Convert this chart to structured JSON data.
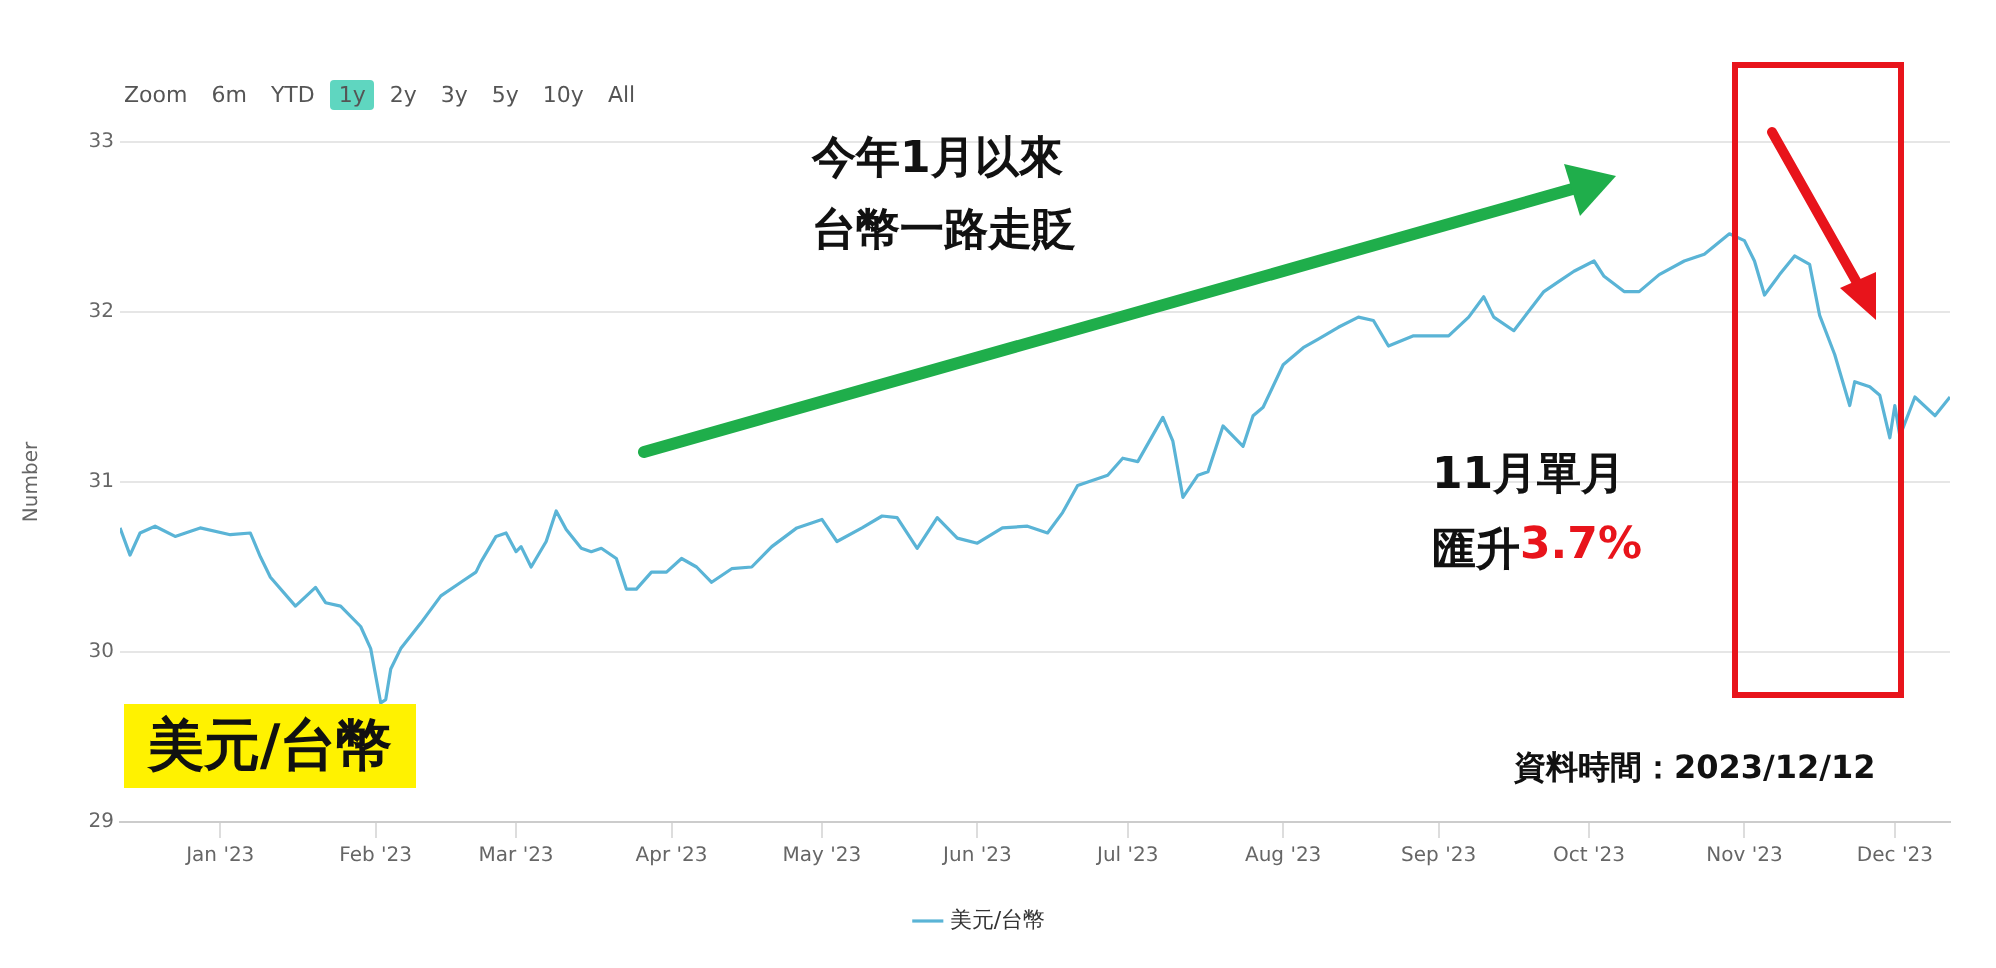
{
  "chart_data": {
    "type": "line",
    "title": "美元/台幣",
    "ylabel": "Number",
    "annotations": [
      "Zoom",
      "6m",
      "YTD",
      "1y",
      "2y",
      "3y",
      "5y",
      "10y",
      "All",
      "今年1月以來",
      "台幣一路走貶",
      "11月單月",
      "匯升",
      "3.7%",
      "資料時間：2023/12/12"
    ],
    "x": [
      "2022-12-12",
      "2022-12-14",
      "2022-12-16",
      "2022-12-19",
      "2022-12-23",
      "2022-12-28",
      "2023-01-03",
      "2023-01-07",
      "2023-01-09",
      "2023-01-11",
      "2023-01-16",
      "2023-01-20",
      "2023-01-22",
      "2023-01-25",
      "2023-01-29",
      "2023-01-31",
      "2023-02-02",
      "2023-02-03",
      "2023-02-04",
      "2023-02-06",
      "2023-02-10",
      "2023-02-14",
      "2023-02-18",
      "2023-02-21",
      "2023-02-22",
      "2023-02-25",
      "2023-02-27",
      "2023-03-01",
      "2023-03-02",
      "2023-03-04",
      "2023-03-07",
      "2023-03-09",
      "2023-03-11",
      "2023-03-14",
      "2023-03-16",
      "2023-03-18",
      "2023-03-21",
      "2023-03-23",
      "2023-03-25",
      "2023-03-28",
      "2023-03-31",
      "2023-04-03",
      "2023-04-06",
      "2023-04-09",
      "2023-04-13",
      "2023-04-17",
      "2023-04-21",
      "2023-04-26",
      "2023-05-01",
      "2023-05-04",
      "2023-05-09",
      "2023-05-13",
      "2023-05-16",
      "2023-05-20",
      "2023-05-24",
      "2023-05-28",
      "2023-06-01",
      "2023-06-06",
      "2023-06-11",
      "2023-06-15",
      "2023-06-18",
      "2023-06-21",
      "2023-06-27",
      "2023-06-30",
      "2023-07-03",
      "2023-07-08",
      "2023-07-10",
      "2023-07-12",
      "2023-07-15",
      "2023-07-17",
      "2023-07-20",
      "2023-07-24",
      "2023-07-26",
      "2023-07-28",
      "2023-08-01",
      "2023-08-05",
      "2023-08-08",
      "2023-08-12",
      "2023-08-16",
      "2023-08-19",
      "2023-08-22",
      "2023-08-27",
      "2023-09-03",
      "2023-09-07",
      "2023-09-10",
      "2023-09-12",
      "2023-09-16",
      "2023-09-22",
      "2023-09-25",
      "2023-09-28",
      "2023-10-02",
      "2023-10-04",
      "2023-10-08",
      "2023-10-11",
      "2023-10-15",
      "2023-10-20",
      "2023-10-24",
      "2023-10-29",
      "2023-11-01",
      "2023-11-03",
      "2023-11-05",
      "2023-11-08",
      "2023-11-11",
      "2023-11-14",
      "2023-11-16",
      "2023-11-19",
      "2023-11-22",
      "2023-11-23",
      "2023-11-26",
      "2023-11-28",
      "2023-11-30",
      "2023-12-01",
      "2023-12-02",
      "2023-12-05",
      "2023-12-09",
      "2023-12-12"
    ],
    "series": [
      {
        "name": "美元/台幣",
        "color": "#5ab4d6",
        "values": [
          30.73,
          30.57,
          30.7,
          30.74,
          30.68,
          30.73,
          30.69,
          30.7,
          30.56,
          30.44,
          30.27,
          30.38,
          30.29,
          30.27,
          30.15,
          30.02,
          29.7,
          29.72,
          29.9,
          30.02,
          30.17,
          30.33,
          30.41,
          30.47,
          30.53,
          30.68,
          30.7,
          30.59,
          30.62,
          30.5,
          30.65,
          30.83,
          30.72,
          30.61,
          30.59,
          30.61,
          30.55,
          30.37,
          30.37,
          30.47,
          30.47,
          30.55,
          30.5,
          30.41,
          30.49,
          30.5,
          30.62,
          30.73,
          30.78,
          30.65,
          30.73,
          30.8,
          30.79,
          30.61,
          30.79,
          30.67,
          30.64,
          30.73,
          30.74,
          30.7,
          30.82,
          30.98,
          31.04,
          31.14,
          31.12,
          31.38,
          31.24,
          30.91,
          31.04,
          31.06,
          31.33,
          31.21,
          31.39,
          31.44,
          31.69,
          31.79,
          31.84,
          31.91,
          31.97,
          31.95,
          31.8,
          31.86,
          31.86,
          31.97,
          32.09,
          31.97,
          31.89,
          32.12,
          32.18,
          32.24,
          32.3,
          32.21,
          32.12,
          32.12,
          32.22,
          32.3,
          32.34,
          32.46,
          32.42,
          32.3,
          32.1,
          32.22,
          32.33,
          32.28,
          31.98,
          31.75,
          31.45,
          31.59,
          31.56,
          31.51,
          31.26,
          31.45,
          31.27,
          31.5,
          31.39,
          31.5
        ]
      }
    ],
    "xlim": [
      "2022-12-12",
      "2023-12-12"
    ],
    "xticks": [
      {
        "value": "2023-01-01",
        "label": "Jan '23"
      },
      {
        "value": "2023-02-01",
        "label": "Feb '23"
      },
      {
        "value": "2023-03-01",
        "label": "Mar '23"
      },
      {
        "value": "2023-04-01",
        "label": "Apr '23"
      },
      {
        "value": "2023-05-01",
        "label": "May '23"
      },
      {
        "value": "2023-06-01",
        "label": "Jun '23"
      },
      {
        "value": "2023-07-01",
        "label": "Jul '23"
      },
      {
        "value": "2023-08-01",
        "label": "Aug '23"
      },
      {
        "value": "2023-09-01",
        "label": "Sep '23"
      },
      {
        "value": "2023-10-01",
        "label": "Oct '23"
      },
      {
        "value": "2023-11-01",
        "label": "Nov '23"
      },
      {
        "value": "2023-12-01",
        "label": "Dec '23"
      }
    ],
    "ylim": [
      29,
      33
    ],
    "yticks": [
      29,
      30,
      31,
      32,
      33
    ],
    "grid": "y",
    "legend": "bottom",
    "marker": "none",
    "line_style": "solid"
  }
}
